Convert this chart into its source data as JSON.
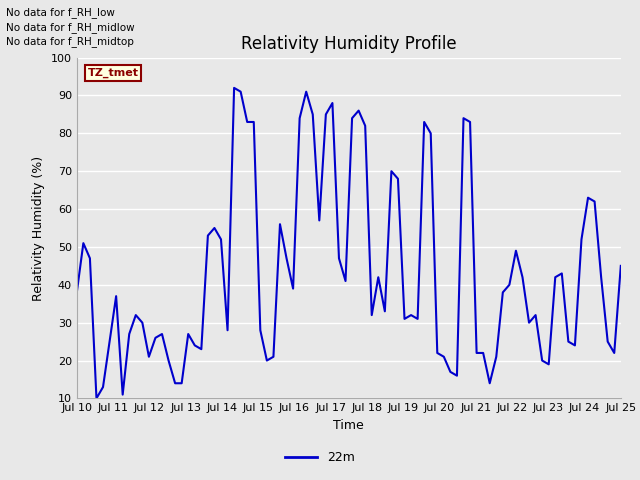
{
  "title": "Relativity Humidity Profile",
  "xlabel": "Time",
  "ylabel": "Relativity Humidity (%)",
  "ylim": [
    10,
    100
  ],
  "xlim": [
    0,
    15
  ],
  "xtick_labels": [
    "Jul 10",
    "Jul 11",
    "Jul 12",
    "Jul 13",
    "Jul 14",
    "Jul 15",
    "Jul 16",
    "Jul 17",
    "Jul 18",
    "Jul 19",
    "Jul 20",
    "Jul 21",
    "Jul 22",
    "Jul 23",
    "Jul 24",
    "Jul 25"
  ],
  "line_color": "#0000cc",
  "line_width": 1.5,
  "legend_label": "22m",
  "no_data_texts": [
    "No data for f_RH_low",
    "No data for f_RH_midlow",
    "No data for f_RH_midtop"
  ],
  "tz_label": "TZ_tmet",
  "background_color": "#e8e8e8",
  "plot_bg_color": "#e8e8e8",
  "grid_color": "#ffffff",
  "title_fontsize": 12,
  "axis_fontsize": 9,
  "tick_fontsize": 8,
  "y_values": [
    38,
    51,
    47,
    10,
    13,
    25,
    37,
    11,
    27,
    32,
    30,
    21,
    26,
    27,
    20,
    14,
    14,
    27,
    24,
    23,
    53,
    55,
    52,
    28,
    92,
    91,
    83,
    83,
    28,
    20,
    21,
    56,
    47,
    39,
    84,
    91,
    85,
    57,
    85,
    88,
    47,
    41,
    84,
    86,
    82,
    32,
    42,
    33,
    70,
    68,
    31,
    32,
    31,
    83,
    80,
    22,
    21,
    17,
    16,
    84,
    83,
    22,
    22,
    14,
    21,
    38,
    40,
    49,
    42,
    30,
    32,
    20,
    19,
    42,
    43,
    25,
    24,
    52,
    63,
    62,
    42,
    25,
    22,
    45
  ]
}
